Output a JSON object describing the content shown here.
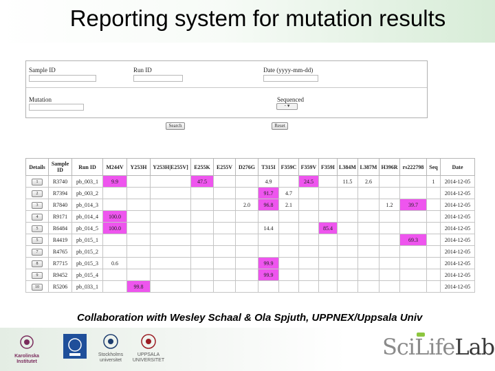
{
  "title": "Reporting system for mutation results",
  "form": {
    "sample_id_label": "Sample ID",
    "run_id_label": "Run ID",
    "date_label": "Date (yyyy-mm-dd)",
    "mutation_label": "Mutation",
    "sequenced_label": "Sequenced",
    "sequenced_value": "-",
    "search_label": "Search",
    "reset_label": "Reset"
  },
  "table": {
    "headers": [
      "Details",
      "Sample ID",
      "Run ID",
      "M244V",
      "Y253H",
      "Y253H|E255V]",
      "E255K",
      "E255V",
      "D276G",
      "T315I",
      "F359C",
      "F359V",
      "F359I",
      "L384M",
      "L387M",
      "H396R",
      "rs222798",
      "Seq",
      "Date"
    ],
    "rows": [
      {
        "details": "1",
        "cells": [
          "R3740",
          "pb_003_1",
          "9.9",
          "",
          "",
          "47.5",
          "",
          "",
          "4.9",
          "",
          "24.5",
          "",
          "11.5",
          "2.6",
          "",
          "",
          "1",
          "2014-12-05"
        ]
      },
      {
        "details": "2",
        "cells": [
          "R7394",
          "pb_003_2",
          "",
          "",
          "",
          "",
          "",
          "",
          "91.7",
          "4.7",
          "",
          "",
          "",
          "",
          "",
          "",
          "",
          "2014-12-05"
        ]
      },
      {
        "details": "3",
        "cells": [
          "R7840",
          "pb_014_3",
          "",
          "",
          "",
          "",
          "",
          "2.0",
          "96.8",
          "2.1",
          "",
          "",
          "",
          "",
          "1.2",
          "39.7",
          "",
          "2014-12-05"
        ]
      },
      {
        "details": "4",
        "cells": [
          "R9171",
          "pb_014_4",
          "100.0",
          "",
          "",
          "",
          "",
          "",
          "",
          "",
          "",
          "",
          "",
          "",
          "",
          "",
          "",
          "2014-12-05"
        ]
      },
      {
        "details": "5",
        "cells": [
          "R6484",
          "pb_014_5",
          "100.0",
          "",
          "",
          "",
          "",
          "",
          "14.4",
          "",
          "",
          "85.4",
          "",
          "",
          "",
          "",
          "",
          "2014-12-05"
        ]
      },
      {
        "details": "5",
        "cells": [
          "R4419",
          "pb_015_1",
          "",
          "",
          "",
          "",
          "",
          "",
          "",
          "",
          "",
          "",
          "",
          "",
          "",
          "69.3",
          "",
          "2014-12-05"
        ]
      },
      {
        "details": "7",
        "cells": [
          "R4765",
          "pb_015_2",
          "",
          "",
          "",
          "",
          "",
          "",
          "",
          "",
          "",
          "",
          "",
          "",
          "",
          "",
          "",
          "2014-12-05"
        ]
      },
      {
        "details": "8",
        "cells": [
          "R7715",
          "pb_015_3",
          "0.6",
          "",
          "",
          "",
          "",
          "",
          "99.9",
          "",
          "",
          "",
          "",
          "",
          "",
          "",
          "",
          "2014-12-05"
        ]
      },
      {
        "details": "9",
        "cells": [
          "R9452",
          "pb_015_4",
          "",
          "",
          "",
          "",
          "",
          "",
          "99.9",
          "",
          "",
          "",
          "",
          "",
          "",
          "",
          "",
          "2014-12-05"
        ]
      },
      {
        "details": "10",
        "cells": [
          "R5206",
          "pb_033_1",
          "",
          "99.8",
          "",
          "",
          "",
          "",
          "",
          "",
          "",
          "",
          "",
          "",
          "",
          "",
          "",
          "2014-12-05"
        ]
      }
    ],
    "highlights": [
      [
        false,
        false,
        true,
        false,
        false,
        true,
        false,
        false,
        false,
        false,
        true,
        false,
        false,
        false,
        false,
        false,
        false,
        false
      ],
      [
        false,
        false,
        false,
        false,
        false,
        false,
        false,
        false,
        true,
        false,
        false,
        false,
        false,
        false,
        false,
        false,
        false,
        false
      ],
      [
        false,
        false,
        false,
        false,
        false,
        false,
        false,
        false,
        true,
        false,
        false,
        false,
        false,
        false,
        false,
        true,
        false,
        false
      ],
      [
        false,
        false,
        true,
        false,
        false,
        false,
        false,
        false,
        false,
        false,
        false,
        false,
        false,
        false,
        false,
        false,
        false,
        false
      ],
      [
        false,
        false,
        true,
        false,
        false,
        false,
        false,
        false,
        false,
        false,
        false,
        true,
        false,
        false,
        false,
        false,
        false,
        false
      ],
      [
        false,
        false,
        false,
        false,
        false,
        false,
        false,
        false,
        false,
        false,
        false,
        false,
        false,
        false,
        false,
        true,
        false,
        false
      ],
      [
        false,
        false,
        false,
        false,
        false,
        false,
        false,
        false,
        false,
        false,
        false,
        false,
        false,
        false,
        false,
        false,
        false,
        false
      ],
      [
        false,
        false,
        false,
        false,
        false,
        false,
        false,
        false,
        true,
        false,
        false,
        false,
        false,
        false,
        false,
        false,
        false,
        false
      ],
      [
        false,
        false,
        false,
        false,
        false,
        false,
        false,
        false,
        true,
        false,
        false,
        false,
        false,
        false,
        false,
        false,
        false,
        false
      ],
      [
        false,
        false,
        false,
        true,
        false,
        false,
        false,
        false,
        false,
        false,
        false,
        false,
        false,
        false,
        false,
        false,
        false,
        false
      ]
    ],
    "highlight_color": "#ee55ee"
  },
  "credit": "Collaboration with Wesley Schaal & Ola Spjuth, UPPNEX/Uppsala Univ",
  "logos": [
    {
      "name": "karolinska-logo",
      "caption": "Karolinska Institutet"
    },
    {
      "name": "kth-logo",
      "caption": ""
    },
    {
      "name": "stockholm-university-logo",
      "caption": "Stockholms universitet"
    },
    {
      "name": "uppsala-logo",
      "caption": "UPPSALA UNIVERSITET"
    }
  ],
  "scilifelab": {
    "part1": "SciLife",
    "part2": "Lab"
  }
}
